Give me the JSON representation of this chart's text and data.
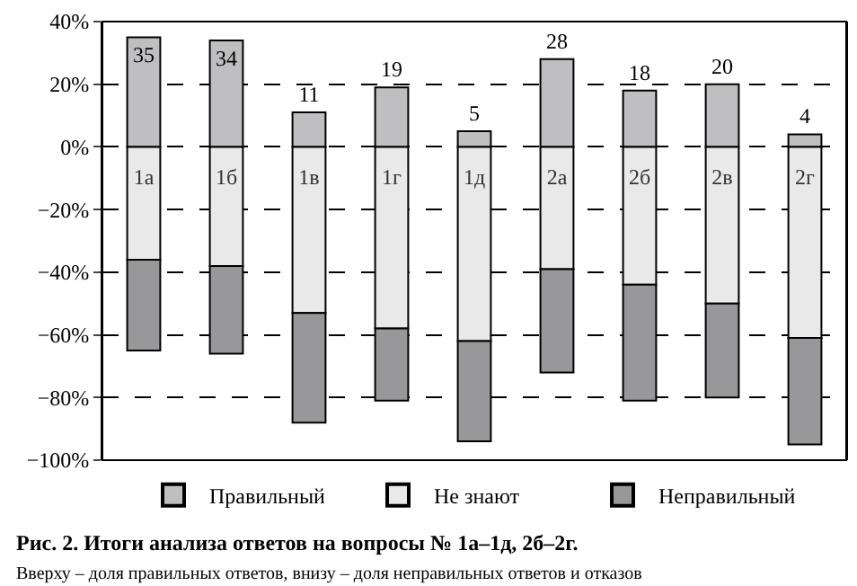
{
  "chart_data": {
    "type": "bar",
    "stacked": true,
    "title": "Рис. 2. Итоги анализа ответов на вопросы № 1а–1д, 2б–2г.",
    "subtitle": "Вверху – доля правильных ответов, внизу – доля неправильных ответов и отказов",
    "categories": [
      "1а",
      "1б",
      "1в",
      "1г",
      "1д",
      "2а",
      "2б",
      "2в",
      "2г"
    ],
    "series": [
      {
        "name": "Правильный",
        "color": "#bfbfc1",
        "values": [
          35,
          34,
          11,
          19,
          5,
          28,
          18,
          20,
          4
        ],
        "data_labels": true
      },
      {
        "name": "Не знают",
        "color": "#e9e9e9",
        "values": [
          -36,
          -38,
          -53,
          -58,
          -62,
          -39,
          -44,
          -50,
          -61
        ]
      },
      {
        "name": "Неправильный",
        "color": "#98989a",
        "values": [
          -29,
          -28,
          -35,
          -23,
          -32,
          -33,
          -37,
          -30,
          -34
        ]
      }
    ],
    "ylim": [
      -100,
      40
    ],
    "yticks": [
      {
        "value": 40,
        "label": "40%"
      },
      {
        "value": 20,
        "label": "20%"
      },
      {
        "value": 0,
        "label": "0%"
      },
      {
        "value": -20,
        "label": "−20%"
      },
      {
        "value": -40,
        "label": "−40%"
      },
      {
        "value": -60,
        "label": "−60%"
      },
      {
        "value": -80,
        "label": "−80%"
      },
      {
        "value": -100,
        "label": "−100%"
      }
    ],
    "grid": "y",
    "legend": "bottom"
  }
}
